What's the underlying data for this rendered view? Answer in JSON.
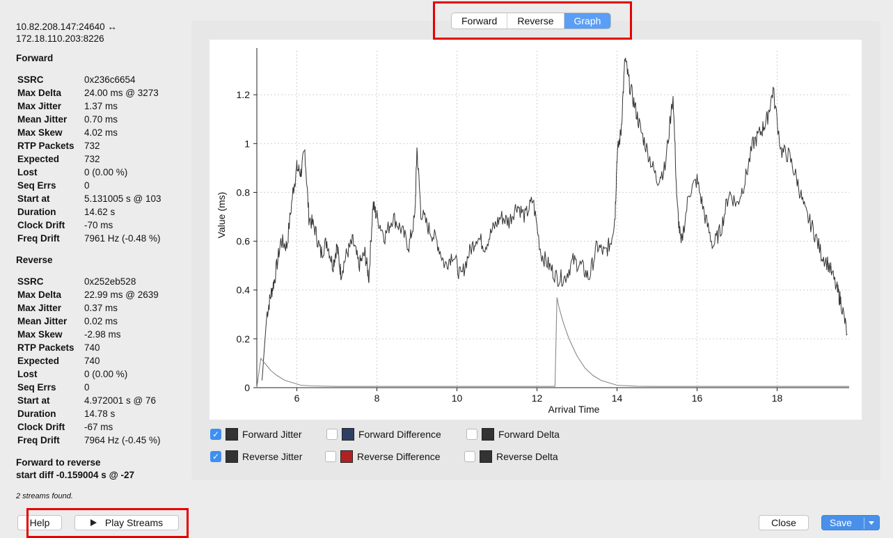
{
  "address": {
    "line1": "10.82.208.147:24640 ↔",
    "line2": "172.18.110.203:8226"
  },
  "forward": {
    "title": "Forward",
    "rows": [
      {
        "key": "SSRC",
        "value": "0x236c6654"
      },
      {
        "key": "Max Delta",
        "value": "24.00 ms @ 3273"
      },
      {
        "key": "Max Jitter",
        "value": "1.37 ms"
      },
      {
        "key": "Mean Jitter",
        "value": "0.70 ms"
      },
      {
        "key": "Max Skew",
        "value": "4.02 ms"
      },
      {
        "key": "RTP Packets",
        "value": "732"
      },
      {
        "key": "Expected",
        "value": "732"
      },
      {
        "key": "Lost",
        "value": "0 (0.00 %)"
      },
      {
        "key": "Seq Errs",
        "value": "0"
      },
      {
        "key": "Start at",
        "value": "5.131005 s @ 103"
      },
      {
        "key": "Duration",
        "value": "14.62 s"
      },
      {
        "key": "Clock Drift",
        "value": "-70 ms"
      },
      {
        "key": "Freq Drift",
        "value": "7961 Hz (-0.48 %)"
      }
    ]
  },
  "reverse": {
    "title": "Reverse",
    "rows": [
      {
        "key": "SSRC",
        "value": "0x252eb528"
      },
      {
        "key": "Max Delta",
        "value": "22.99 ms @ 2639"
      },
      {
        "key": "Max Jitter",
        "value": "0.37 ms"
      },
      {
        "key": "Mean Jitter",
        "value": "0.02 ms"
      },
      {
        "key": "Max Skew",
        "value": "-2.98 ms"
      },
      {
        "key": "RTP Packets",
        "value": "740"
      },
      {
        "key": "Expected",
        "value": "740"
      },
      {
        "key": "Lost",
        "value": "0 (0.00 %)"
      },
      {
        "key": "Seq Errs",
        "value": "0"
      },
      {
        "key": "Start at",
        "value": "4.972001 s @ 76"
      },
      {
        "key": "Duration",
        "value": "14.78 s"
      },
      {
        "key": "Clock Drift",
        "value": "-67 ms"
      },
      {
        "key": "Freq Drift",
        "value": "7964 Hz (-0.45 %)"
      }
    ]
  },
  "forward_to_reverse": {
    "line1": "Forward to reverse",
    "line2": "start diff -0.159004 s @ -27"
  },
  "streams_found": "2 streams found.",
  "tabs": [
    {
      "label": "Forward",
      "active": false
    },
    {
      "label": "Reverse",
      "active": false
    },
    {
      "label": "Graph",
      "active": true
    }
  ],
  "legend": [
    {
      "label": "Forward Jitter",
      "checked": true,
      "color": "#333333"
    },
    {
      "label": "Forward Difference",
      "checked": false,
      "color": "#2e3f66"
    },
    {
      "label": "Forward Delta",
      "checked": false,
      "color": "#333333"
    },
    {
      "label": "Reverse Jitter",
      "checked": true,
      "color": "#333333"
    },
    {
      "label": "Reverse Difference",
      "checked": false,
      "color": "#b02222"
    },
    {
      "label": "Reverse Delta",
      "checked": false,
      "color": "#333333"
    }
  ],
  "buttons": {
    "help": "Help",
    "play": "Play Streams",
    "close": "Close",
    "save": "Save"
  },
  "icons": {
    "play": "play-icon",
    "save_menu": "chevron-down-icon",
    "checkmark": "checkmark-icon"
  },
  "chart_data": {
    "type": "line",
    "title": "",
    "xlabel": "Arrival Time",
    "ylabel": "Value (ms)",
    "xlim": [
      5.0,
      19.8
    ],
    "ylim": [
      0,
      1.38
    ],
    "x_ticks": [
      6,
      8,
      10,
      12,
      14,
      16,
      18
    ],
    "y_ticks": [
      0,
      0.2,
      0.4,
      0.6,
      0.8,
      1,
      1.2
    ],
    "y_tick_labels": [
      "0",
      "0.2",
      "0.4",
      "0.6",
      "0.8",
      "1",
      "1.2"
    ],
    "grid": true,
    "series": [
      {
        "name": "Forward Jitter",
        "color": "#333333",
        "x": [
          5.13,
          5.25,
          5.35,
          5.45,
          5.6,
          5.75,
          5.9,
          6.0,
          6.1,
          6.2,
          6.3,
          6.45,
          6.6,
          6.75,
          6.9,
          7.0,
          7.1,
          7.25,
          7.4,
          7.55,
          7.7,
          7.8,
          7.9,
          8.0,
          8.2,
          8.4,
          8.6,
          8.8,
          8.95,
          9.0,
          9.1,
          9.3,
          9.5,
          9.7,
          9.9,
          10.1,
          10.3,
          10.5,
          10.7,
          10.9,
          11.1,
          11.3,
          11.5,
          11.7,
          11.9,
          12.1,
          12.3,
          12.5,
          12.7,
          12.9,
          13.1,
          13.3,
          13.5,
          13.7,
          13.85,
          13.95,
          14.0,
          14.1,
          14.2,
          14.3,
          14.45,
          14.6,
          14.8,
          15.0,
          15.2,
          15.4,
          15.5,
          15.6,
          15.8,
          16.0,
          16.2,
          16.4,
          16.6,
          16.8,
          17.0,
          17.2,
          17.4,
          17.6,
          17.75,
          17.9,
          18.1,
          18.3,
          18.5,
          18.7,
          18.9,
          19.1,
          19.3,
          19.5,
          19.6,
          19.75
        ],
        "values": [
          0.03,
          0.3,
          0.38,
          0.45,
          0.6,
          0.58,
          0.8,
          0.9,
          0.88,
          0.97,
          0.7,
          0.65,
          0.55,
          0.6,
          0.5,
          0.58,
          0.47,
          0.55,
          0.6,
          0.5,
          0.55,
          0.45,
          0.75,
          0.7,
          0.62,
          0.7,
          0.65,
          0.58,
          0.7,
          0.98,
          0.72,
          0.65,
          0.6,
          0.5,
          0.55,
          0.45,
          0.55,
          0.62,
          0.58,
          0.65,
          0.7,
          0.68,
          0.75,
          0.7,
          0.77,
          0.55,
          0.5,
          0.45,
          0.45,
          0.52,
          0.5,
          0.45,
          0.58,
          0.55,
          0.6,
          0.7,
          0.95,
          1.05,
          1.35,
          1.25,
          1.15,
          1.05,
          0.95,
          0.85,
          0.9,
          1.2,
          0.75,
          0.58,
          0.8,
          0.85,
          0.7,
          0.58,
          0.65,
          0.8,
          0.75,
          0.85,
          1.0,
          1.05,
          1.1,
          1.22,
          0.97,
          0.95,
          0.85,
          0.72,
          0.65,
          0.55,
          0.5,
          0.4,
          0.35,
          0.22
        ]
      },
      {
        "name": "Reverse Jitter",
        "color": "#888888",
        "x": [
          5.0,
          5.1,
          5.2,
          5.35,
          5.5,
          5.7,
          5.9,
          6.1,
          6.4,
          7.0,
          8.0,
          9.0,
          10.0,
          11.0,
          12.0,
          12.45,
          12.5,
          12.55,
          12.65,
          12.8,
          13.0,
          13.2,
          13.4,
          13.6,
          13.8,
          14.0,
          14.5,
          15.0,
          16.0,
          17.0,
          18.0,
          19.0,
          19.8
        ],
        "values": [
          0.0,
          0.12,
          0.1,
          0.07,
          0.05,
          0.03,
          0.02,
          0.01,
          0.007,
          0.005,
          0.005,
          0.005,
          0.005,
          0.005,
          0.005,
          0.005,
          0.37,
          0.33,
          0.27,
          0.2,
          0.13,
          0.08,
          0.05,
          0.03,
          0.02,
          0.01,
          0.006,
          0.005,
          0.005,
          0.005,
          0.005,
          0.005,
          0.005
        ]
      }
    ]
  }
}
